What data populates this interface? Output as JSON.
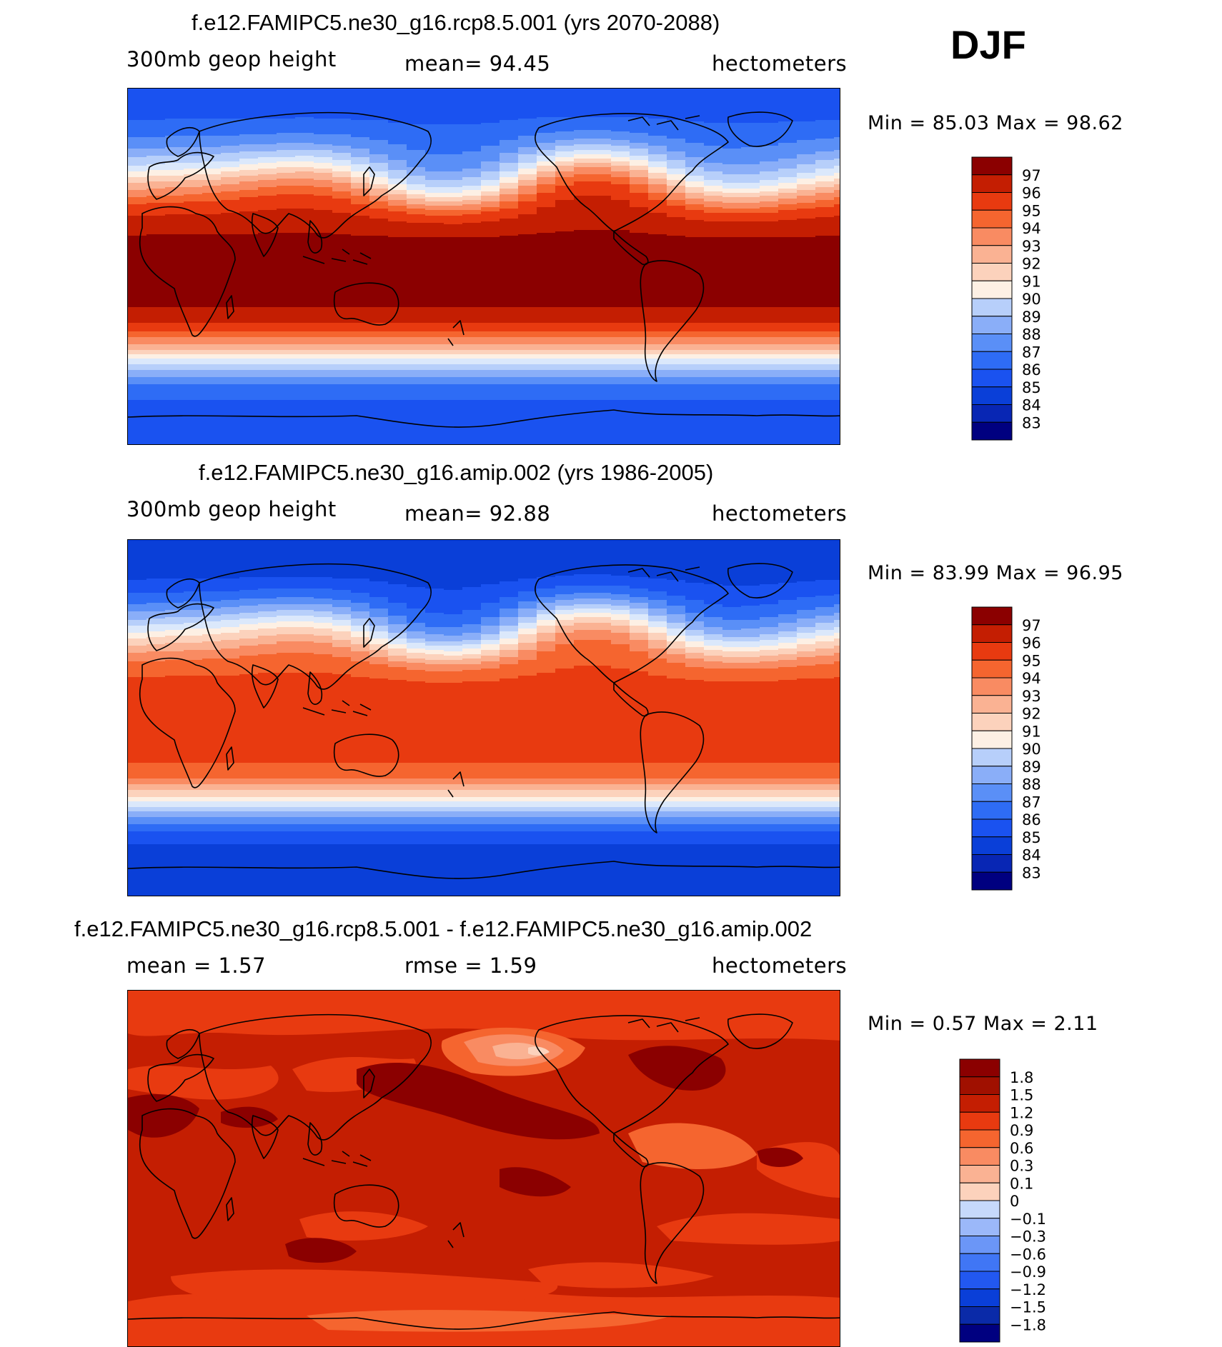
{
  "season": "DJF",
  "colors": {
    "seq16": [
      "#000080",
      "#0826b4",
      "#0a3fd8",
      "#1a52f0",
      "#2e6cf5",
      "#5a8ff7",
      "#8aaef8",
      "#b7cffa",
      "#dbe8fb",
      "#fdf0e4",
      "#fcd2bc",
      "#fab293",
      "#f98b62",
      "#f5652f",
      "#e83a10",
      "#c41e02",
      "#8b0000"
    ],
    "diff": [
      "#000080",
      "#0a2aa8",
      "#0a3fd8",
      "#2258f0",
      "#4076f5",
      "#6b96f7",
      "#9bb8f9",
      "#c6d9fb",
      "#fdeee2",
      "#fcd2bc",
      "#fab293",
      "#f98b62",
      "#f5652f",
      "#e83a10",
      "#c41e02",
      "#a01000",
      "#8b0000"
    ],
    "coast": "#000000"
  },
  "chart_data": [
    {
      "type": "heatmap",
      "title": "f.e12.FAMIPC5.ne30_g16.rcp8.5.001 (yrs 2070-2088)",
      "variable": "300mb geop height",
      "mean_text": "mean=   94.45",
      "units": "hectometers",
      "minmax_text": "Min =   85.03 Max =   98.62",
      "min": 85.03,
      "max": 98.62,
      "mean": 94.45,
      "levels": [
        "97",
        "96",
        "95",
        "94",
        "93",
        "92",
        "91",
        "90",
        "89",
        "88",
        "87",
        "86",
        "85",
        "84",
        "83"
      ],
      "zonal_profile": {
        "lat": [
          90,
          80,
          70,
          60,
          50,
          40,
          30,
          20,
          10,
          0,
          -10,
          -20,
          -30,
          -40,
          -50,
          -60,
          -70,
          -80,
          -90
        ],
        "value": [
          85.5,
          85.6,
          86.3,
          87.8,
          90.2,
          93.6,
          96.4,
          97.8,
          98.3,
          98.5,
          98.4,
          98.0,
          96.8,
          93.6,
          89.5,
          86.8,
          85.6,
          85.2,
          85.1
        ]
      }
    },
    {
      "type": "heatmap",
      "title": "f.e12.FAMIPC5.ne30_g16.amip.002 (yrs 1986-2005)",
      "variable": "300mb geop height",
      "mean_text": "mean=   92.88",
      "units": "hectometers",
      "minmax_text": "Min =   83.99 Max =   96.95",
      "min": 83.99,
      "max": 96.95,
      "mean": 92.88,
      "levels": [
        "97",
        "96",
        "95",
        "94",
        "93",
        "92",
        "91",
        "90",
        "89",
        "88",
        "87",
        "86",
        "85",
        "84",
        "83"
      ],
      "zonal_profile": {
        "lat": [
          90,
          80,
          70,
          60,
          50,
          40,
          30,
          20,
          10,
          0,
          -10,
          -20,
          -30,
          -40,
          -50,
          -60,
          -70,
          -80,
          -90
        ],
        "value": [
          84.3,
          84.4,
          85.0,
          86.4,
          88.8,
          92.0,
          94.8,
          96.1,
          96.6,
          96.8,
          96.7,
          96.3,
          95.0,
          91.8,
          87.8,
          85.3,
          84.3,
          84.1,
          84.0
        ]
      }
    },
    {
      "type": "heatmap",
      "title": "f.e12.FAMIPC5.ne30_g16.rcp8.5.001 - f.e12.FAMIPC5.ne30_g16.amip.002",
      "mean_text": "mean =    1.57",
      "rmse_text": "rmse =    1.59",
      "units": "hectometers",
      "minmax_text": "Min =    0.57 Max =    2.11",
      "min": 0.57,
      "max": 2.11,
      "mean": 1.57,
      "rmse": 1.59,
      "levels": [
        "1.8",
        "1.5",
        "1.2",
        "0.9",
        "0.6",
        "0.3",
        "0.1",
        "0",
        "−0.1",
        "−0.3",
        "−0.6",
        "−0.9",
        "−1.2",
        "−1.5",
        "−1.8"
      ]
    }
  ]
}
